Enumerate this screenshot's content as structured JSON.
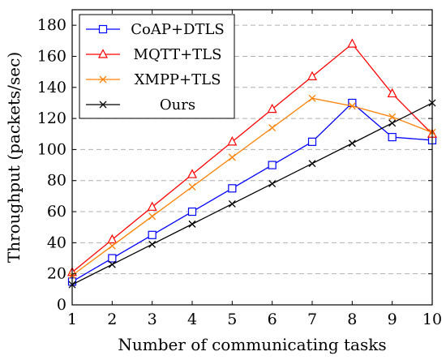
{
  "chart_data": {
    "type": "line",
    "xlabel": "Number of communicating tasks",
    "ylabel": "Throughput (packets/sec)",
    "xlim": [
      1,
      10
    ],
    "ylim": [
      0,
      190
    ],
    "x": [
      1,
      2,
      3,
      4,
      5,
      6,
      7,
      8,
      9,
      10
    ],
    "xticks": [
      "1",
      "2",
      "3",
      "4",
      "5",
      "6",
      "7",
      "8",
      "9",
      "10"
    ],
    "yticks": [
      0,
      20,
      40,
      60,
      80,
      100,
      120,
      140,
      160,
      180
    ],
    "ytick_labels": [
      "0",
      "20",
      "40",
      "60",
      "80",
      "100",
      "120",
      "140",
      "160",
      "180"
    ],
    "grid": "horizontal dashed",
    "legend_position": "top-left",
    "series": [
      {
        "name": "CoAP+DTLS",
        "color": "#0000ff",
        "marker": "square",
        "values": [
          15,
          30,
          45,
          60,
          75,
          90,
          105,
          130,
          108,
          106
        ]
      },
      {
        "name": "MQTT+TLS",
        "color": "#ff0000",
        "marker": "triangle",
        "values": [
          21,
          42,
          63,
          84,
          105,
          126,
          147,
          168,
          136,
          110
        ]
      },
      {
        "name": "XMPP+TLS",
        "color": "#ff8000",
        "marker": "x",
        "values": [
          19,
          38,
          57,
          76,
          95,
          114,
          133,
          128,
          121,
          111
        ]
      },
      {
        "name": "Ours",
        "color": "#000000",
        "marker": "x",
        "values": [
          13,
          26,
          39,
          52,
          65,
          78,
          91,
          104,
          117,
          130
        ]
      }
    ]
  }
}
